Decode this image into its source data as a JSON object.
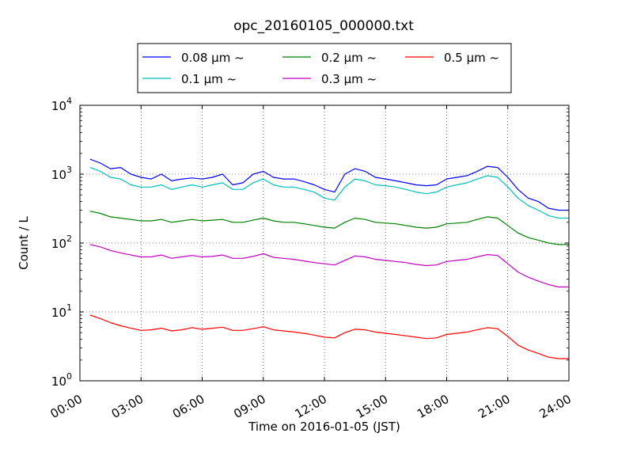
{
  "chart_data": {
    "type": "line",
    "title": "opc_20160105_000000.txt",
    "xlabel": "Time on 2016-01-05 (JST)",
    "ylabel": "Count / L",
    "x_unit": "hours",
    "xlim": [
      0,
      24
    ],
    "ylim": [
      1,
      10000
    ],
    "yscale": "log",
    "grid": true,
    "legend_position": "top-center",
    "x_ticks": [
      {
        "value": 0,
        "label": "00:00"
      },
      {
        "value": 3,
        "label": "03:00"
      },
      {
        "value": 6,
        "label": "06:00"
      },
      {
        "value": 9,
        "label": "09:00"
      },
      {
        "value": 12,
        "label": "12:00"
      },
      {
        "value": 15,
        "label": "15:00"
      },
      {
        "value": 18,
        "label": "18:00"
      },
      {
        "value": 21,
        "label": "21:00"
      },
      {
        "value": 24,
        "label": "24:00"
      }
    ],
    "y_ticks": [
      {
        "value": 1,
        "exp": "0"
      },
      {
        "value": 10,
        "exp": "1"
      },
      {
        "value": 100,
        "exp": "2"
      },
      {
        "value": 1000,
        "exp": "3"
      },
      {
        "value": 10000,
        "exp": "4"
      }
    ],
    "y_tick_base": "10",
    "series": [
      {
        "name": "0.08 μm ~",
        "color": "#0000ff",
        "x": [
          0.5,
          1,
          1.5,
          2,
          2.5,
          3,
          3.5,
          4,
          4.5,
          5,
          5.5,
          6,
          6.5,
          7,
          7.5,
          8,
          8.5,
          9,
          9.5,
          10,
          10.5,
          11,
          11.5,
          12,
          12.5,
          13,
          13.5,
          14,
          14.5,
          15,
          15.5,
          16,
          16.5,
          17,
          17.5,
          18,
          18.5,
          19,
          19.5,
          20,
          20.5,
          21,
          21.5,
          22,
          22.5,
          23,
          23.5,
          24
        ],
        "values": [
          1650,
          1450,
          1200,
          1250,
          1000,
          900,
          850,
          1000,
          800,
          850,
          880,
          850,
          900,
          1000,
          700,
          750,
          1000,
          1100,
          900,
          850,
          850,
          780,
          700,
          600,
          550,
          1000,
          1200,
          1100,
          900,
          850,
          800,
          750,
          700,
          680,
          700,
          850,
          900,
          950,
          1100,
          1300,
          1250,
          900,
          600,
          450,
          400,
          320,
          300,
          300
        ]
      },
      {
        "name": "0.1 μm ~",
        "color": "#00bfbf",
        "x": [
          0.5,
          1,
          1.5,
          2,
          2.5,
          3,
          3.5,
          4,
          4.5,
          5,
          5.5,
          6,
          6.5,
          7,
          7.5,
          8,
          8.5,
          9,
          9.5,
          10,
          10.5,
          11,
          11.5,
          12,
          12.5,
          13,
          13.5,
          14,
          14.5,
          15,
          15.5,
          16,
          16.5,
          17,
          17.5,
          18,
          18.5,
          19,
          19.5,
          20,
          20.5,
          21,
          21.5,
          22,
          22.5,
          23,
          23.5,
          24
        ],
        "values": [
          1250,
          1100,
          900,
          850,
          700,
          650,
          650,
          700,
          600,
          650,
          700,
          650,
          700,
          750,
          600,
          600,
          750,
          850,
          700,
          650,
          650,
          600,
          550,
          450,
          420,
          650,
          850,
          800,
          700,
          680,
          650,
          600,
          550,
          520,
          550,
          650,
          700,
          750,
          850,
          950,
          900,
          650,
          450,
          350,
          300,
          250,
          230,
          230
        ]
      },
      {
        "name": "0.2 μm ~",
        "color": "#008000",
        "x": [
          0.5,
          1,
          1.5,
          2,
          2.5,
          3,
          3.5,
          4,
          4.5,
          5,
          5.5,
          6,
          6.5,
          7,
          7.5,
          8,
          8.5,
          9,
          9.5,
          10,
          10.5,
          11,
          11.5,
          12,
          12.5,
          13,
          13.5,
          14,
          14.5,
          15,
          15.5,
          16,
          16.5,
          17,
          17.5,
          18,
          18.5,
          19,
          19.5,
          20,
          20.5,
          21,
          21.5,
          22,
          22.5,
          23,
          23.5,
          24
        ],
        "values": [
          290,
          270,
          240,
          230,
          220,
          210,
          210,
          220,
          200,
          210,
          220,
          210,
          215,
          220,
          200,
          200,
          215,
          230,
          210,
          200,
          200,
          190,
          180,
          170,
          165,
          200,
          230,
          220,
          200,
          195,
          190,
          180,
          170,
          165,
          170,
          190,
          195,
          200,
          220,
          240,
          230,
          180,
          140,
          120,
          110,
          100,
          95,
          95
        ]
      },
      {
        "name": "0.3 μm ~",
        "color": "#bf00bf",
        "x": [
          0.5,
          1,
          1.5,
          2,
          2.5,
          3,
          3.5,
          4,
          4.5,
          5,
          5.5,
          6,
          6.5,
          7,
          7.5,
          8,
          8.5,
          9,
          9.5,
          10,
          10.5,
          11,
          11.5,
          12,
          12.5,
          13,
          13.5,
          14,
          14.5,
          15,
          15.5,
          16,
          16.5,
          17,
          17.5,
          18,
          18.5,
          19,
          19.5,
          20,
          20.5,
          21,
          21.5,
          22,
          22.5,
          23,
          23.5,
          24
        ],
        "values": [
          95,
          88,
          78,
          72,
          67,
          63,
          63,
          67,
          60,
          63,
          66,
          63,
          64,
          67,
          60,
          60,
          64,
          70,
          62,
          60,
          58,
          55,
          52,
          50,
          48,
          56,
          65,
          63,
          58,
          56,
          54,
          52,
          49,
          47,
          48,
          54,
          56,
          58,
          63,
          68,
          66,
          50,
          38,
          32,
          28,
          25,
          23,
          23
        ]
      },
      {
        "name": "0.5 μm ~",
        "color": "#ff0000",
        "x": [
          0.5,
          1,
          1.5,
          2,
          2.5,
          3,
          3.5,
          4,
          4.5,
          5,
          5.5,
          6,
          6.5,
          7,
          7.5,
          8,
          8.5,
          9,
          9.5,
          10,
          10.5,
          11,
          11.5,
          12,
          12.5,
          13,
          13.5,
          14,
          14.5,
          15,
          15.5,
          16,
          16.5,
          17,
          17.5,
          18,
          18.5,
          19,
          19.5,
          20,
          20.5,
          21,
          21.5,
          22,
          22.5,
          23,
          23.5,
          24
        ],
        "values": [
          9,
          8,
          7,
          6.3,
          5.8,
          5.4,
          5.5,
          5.8,
          5.3,
          5.5,
          5.9,
          5.6,
          5.8,
          6.0,
          5.4,
          5.4,
          5.7,
          6.1,
          5.5,
          5.3,
          5.1,
          4.9,
          4.6,
          4.3,
          4.2,
          5.0,
          5.6,
          5.5,
          5.1,
          4.9,
          4.7,
          4.5,
          4.3,
          4.1,
          4.2,
          4.7,
          4.9,
          5.1,
          5.5,
          5.9,
          5.7,
          4.4,
          3.3,
          2.8,
          2.5,
          2.2,
          2.1,
          2.1
        ]
      }
    ]
  }
}
